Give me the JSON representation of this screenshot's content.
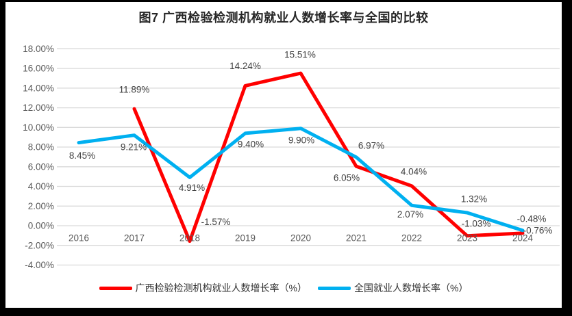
{
  "window": {
    "frame_color": "#000000",
    "canvas_color": "#FFFFFF"
  },
  "chart_data": {
    "type": "line",
    "title": "图7 广西检验检测机构就业人数增长率与全国的比较",
    "categories": [
      "2016",
      "2017",
      "2018",
      "2019",
      "2020",
      "2021",
      "2022",
      "2023",
      "2024"
    ],
    "y_axis": {
      "max": 18,
      "min": -4,
      "step": 2,
      "tick_labels": [
        "18.00%",
        "16.00%",
        "14.00%",
        "12.00%",
        "10.00%",
        "8.00%",
        "6.00%",
        "4.00%",
        "2.00%",
        "0.00%",
        "-2.00%",
        "-4.00%"
      ]
    },
    "grid": true,
    "gridline_color": "#D9D9D9",
    "text_colors": {
      "axis": "#595959",
      "data_label": "#404040"
    },
    "legend_position": "bottom",
    "series": [
      {
        "name": "广西检验检测机构就业人数增长率（%）",
        "color": "#FF0000",
        "values": [
          null,
          11.89,
          -1.57,
          14.24,
          15.51,
          6.05,
          4.04,
          -1.03,
          -0.76
        ],
        "data_labels": [
          "",
          "11.89%",
          "-1.57%",
          "14.24%",
          "15.51%",
          "6.05%",
          "4.04%",
          "-1.03%",
          "-0.76%"
        ]
      },
      {
        "name": "全国就业人数增长率（%）",
        "color": "#00B0F0",
        "values": [
          8.45,
          9.21,
          4.91,
          9.4,
          9.9,
          6.97,
          2.07,
          1.32,
          -0.48
        ],
        "data_labels": [
          "8.45%",
          "9.21%",
          "4.91%",
          "9.40%",
          "9.90%",
          "6.97%",
          "2.07%",
          "1.32%",
          "-0.48%"
        ]
      }
    ]
  }
}
